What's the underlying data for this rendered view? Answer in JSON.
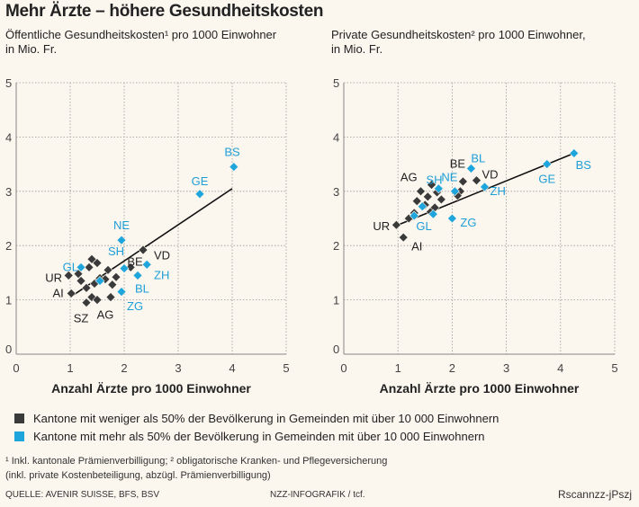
{
  "title": "Mehr Ärzte – höhere Gesundheitskosten",
  "colors": {
    "dark": "#3a3a3a",
    "blue": "#1ea5dc",
    "blue_text": "#1e9fd8"
  },
  "legend": {
    "dark_label": "Kantone mit weniger als 50% der Bevölkerung in Gemeinden mit über 10 000 Einwohnern",
    "blue_label": "Kantone mit mehr als 50% der Bevölkerung in Gemeinden mit über 10 000 Einwohnern"
  },
  "footnotes": {
    "line1": "¹ Inkl. kantonale Prämienverbilligung; ² obligatorische Kranken- und Pflegeversicherung",
    "line2": "(inkl. private Kostenbeteiligung, abzügl. Prämienverbilligung)"
  },
  "source": "QUELLE: AVENIR SUISSE, BFS, BSV",
  "credit": "NZZ-INFOGRAFIK / tcf.",
  "signature": "Rscannzz-jPszj",
  "chart_data": [
    {
      "type": "scatter",
      "title_line1": "Öffentliche Gesundheitskosten¹ pro 1000 Einwohner",
      "title_line2": "in Mio. Fr.",
      "xlabel": "Anzahl Ärzte pro 1000 Einwohner",
      "xlim": [
        0,
        5
      ],
      "ylim": [
        0,
        5
      ],
      "xticks": [
        "0",
        "1",
        "2",
        "3",
        "4",
        "5"
      ],
      "yticks": [
        "0",
        "1",
        "2",
        "3",
        "4",
        "5"
      ],
      "trendline": [
        [
          1.0,
          1.05
        ],
        [
          4.0,
          3.05
        ]
      ],
      "points": [
        {
          "x": 0.97,
          "y": 1.45,
          "group": "dark"
        },
        {
          "x": 1.02,
          "y": 1.12,
          "group": "dark"
        },
        {
          "x": 1.15,
          "y": 1.48,
          "group": "dark"
        },
        {
          "x": 1.2,
          "y": 1.35,
          "group": "dark"
        },
        {
          "x": 1.3,
          "y": 1.22,
          "group": "dark"
        },
        {
          "x": 1.35,
          "y": 1.6,
          "group": "dark"
        },
        {
          "x": 1.4,
          "y": 1.75,
          "group": "dark"
        },
        {
          "x": 1.45,
          "y": 1.3,
          "group": "dark"
        },
        {
          "x": 1.5,
          "y": 1.68,
          "group": "dark"
        },
        {
          "x": 1.55,
          "y": 1.4,
          "group": "dark"
        },
        {
          "x": 1.4,
          "y": 1.05,
          "group": "dark"
        },
        {
          "x": 1.5,
          "y": 1.0,
          "group": "dark"
        },
        {
          "x": 1.65,
          "y": 1.38,
          "group": "dark"
        },
        {
          "x": 1.7,
          "y": 1.55,
          "group": "dark"
        },
        {
          "x": 1.78,
          "y": 1.28,
          "group": "dark"
        },
        {
          "x": 1.85,
          "y": 1.42,
          "group": "dark"
        },
        {
          "x": 1.3,
          "y": 0.95,
          "group": "dark"
        },
        {
          "x": 1.75,
          "y": 1.05,
          "group": "dark"
        },
        {
          "x": 2.12,
          "y": 1.6,
          "group": "dark"
        },
        {
          "x": 2.35,
          "y": 1.92,
          "group": "dark"
        },
        {
          "x": 1.2,
          "y": 1.6,
          "group": "blue"
        },
        {
          "x": 1.55,
          "y": 1.35,
          "group": "blue"
        },
        {
          "x": 1.95,
          "y": 2.1,
          "group": "blue"
        },
        {
          "x": 1.95,
          "y": 1.15,
          "group": "blue"
        },
        {
          "x": 2.0,
          "y": 1.58,
          "group": "blue"
        },
        {
          "x": 2.25,
          "y": 1.45,
          "group": "blue"
        },
        {
          "x": 2.42,
          "y": 1.65,
          "group": "blue"
        },
        {
          "x": 3.4,
          "y": 2.95,
          "group": "blue"
        },
        {
          "x": 4.03,
          "y": 3.45,
          "group": "blue"
        }
      ],
      "labels": [
        {
          "text": "BS",
          "x": 4.0,
          "y": 3.55,
          "group": "blue",
          "anchor": "middle",
          "dy": -6
        },
        {
          "text": "GE",
          "x": 3.4,
          "y": 3.05,
          "group": "blue",
          "anchor": "middle",
          "dy": -4
        },
        {
          "text": "NE",
          "x": 1.95,
          "y": 2.2,
          "group": "blue",
          "anchor": "middle",
          "dy": -6
        },
        {
          "text": "VD",
          "x": 2.55,
          "y": 1.85,
          "group": "dark",
          "anchor": "start",
          "dy": 6
        },
        {
          "text": "GL",
          "x": 1.15,
          "y": 1.6,
          "group": "blue",
          "anchor": "end",
          "dy": 4
        },
        {
          "text": "SH",
          "x": 1.85,
          "y": 1.72,
          "group": "blue",
          "anchor": "middle",
          "dy": -6
        },
        {
          "text": "BE",
          "x": 2.2,
          "y": 1.6,
          "group": "dark",
          "anchor": "middle",
          "dy": -2
        },
        {
          "text": "ZH",
          "x": 2.55,
          "y": 1.45,
          "group": "blue",
          "anchor": "start",
          "dy": 4
        },
        {
          "text": "UR",
          "x": 0.85,
          "y": 1.4,
          "group": "dark",
          "anchor": "end",
          "dy": 4
        },
        {
          "text": "BL",
          "x": 2.2,
          "y": 1.2,
          "group": "blue",
          "anchor": "start",
          "dy": 4
        },
        {
          "text": "AI",
          "x": 0.88,
          "y": 1.12,
          "group": "dark",
          "anchor": "end",
          "dy": 4
        },
        {
          "text": "ZG",
          "x": 2.05,
          "y": 0.88,
          "group": "blue",
          "anchor": "start",
          "dy": 4
        },
        {
          "text": "AG",
          "x": 1.65,
          "y": 0.72,
          "group": "dark",
          "anchor": "middle",
          "dy": 4
        },
        {
          "text": "SZ",
          "x": 1.2,
          "y": 0.65,
          "group": "dark",
          "anchor": "middle",
          "dy": 4
        }
      ]
    },
    {
      "type": "scatter",
      "title_line1": "Private Gesundheitskosten² pro 1000 Einwohner,",
      "title_line2": "in Mio. Fr.",
      "xlabel": "Anzahl Ärzte pro 1000 Einwohner",
      "xlim": [
        0,
        5
      ],
      "ylim": [
        0,
        5
      ],
      "xticks": [
        "0",
        "1",
        "2",
        "3",
        "4",
        "5"
      ],
      "yticks": [
        "0",
        "1",
        "2",
        "3",
        "4",
        "5"
      ],
      "trendline": [
        [
          1.0,
          2.38
        ],
        [
          4.3,
          3.72
        ]
      ],
      "points": [
        {
          "x": 0.97,
          "y": 2.38,
          "group": "dark"
        },
        {
          "x": 1.1,
          "y": 2.15,
          "group": "dark"
        },
        {
          "x": 1.2,
          "y": 2.5,
          "group": "dark"
        },
        {
          "x": 1.3,
          "y": 2.6,
          "group": "dark"
        },
        {
          "x": 1.35,
          "y": 2.82,
          "group": "dark"
        },
        {
          "x": 1.42,
          "y": 3.0,
          "group": "dark"
        },
        {
          "x": 1.5,
          "y": 2.75,
          "group": "dark"
        },
        {
          "x": 1.55,
          "y": 2.9,
          "group": "dark"
        },
        {
          "x": 1.6,
          "y": 2.62,
          "group": "dark"
        },
        {
          "x": 1.68,
          "y": 2.7,
          "group": "dark"
        },
        {
          "x": 1.72,
          "y": 2.98,
          "group": "dark"
        },
        {
          "x": 1.8,
          "y": 2.85,
          "group": "dark"
        },
        {
          "x": 1.62,
          "y": 3.12,
          "group": "dark"
        },
        {
          "x": 2.15,
          "y": 3.0,
          "group": "dark"
        },
        {
          "x": 2.1,
          "y": 2.92,
          "group": "dark"
        },
        {
          "x": 2.2,
          "y": 3.18,
          "group": "dark"
        },
        {
          "x": 2.45,
          "y": 3.2,
          "group": "dark"
        },
        {
          "x": 1.3,
          "y": 2.55,
          "group": "blue"
        },
        {
          "x": 1.45,
          "y": 2.72,
          "group": "blue"
        },
        {
          "x": 1.65,
          "y": 2.58,
          "group": "blue"
        },
        {
          "x": 1.75,
          "y": 3.05,
          "group": "blue"
        },
        {
          "x": 2.0,
          "y": 2.5,
          "group": "blue"
        },
        {
          "x": 2.05,
          "y": 3.0,
          "group": "blue"
        },
        {
          "x": 2.35,
          "y": 3.42,
          "group": "blue"
        },
        {
          "x": 2.6,
          "y": 3.08,
          "group": "blue"
        },
        {
          "x": 3.75,
          "y": 3.5,
          "group": "blue"
        },
        {
          "x": 4.25,
          "y": 3.7,
          "group": "blue"
        }
      ],
      "labels": [
        {
          "text": "BS",
          "x": 4.28,
          "y": 3.48,
          "group": "blue",
          "anchor": "start",
          "dy": 4
        },
        {
          "text": "GE",
          "x": 3.75,
          "y": 3.22,
          "group": "blue",
          "anchor": "middle",
          "dy": 4
        },
        {
          "text": "BE",
          "x": 2.1,
          "y": 3.5,
          "group": "dark",
          "anchor": "middle",
          "dy": 4
        },
        {
          "text": "BL",
          "x": 2.48,
          "y": 3.6,
          "group": "blue",
          "anchor": "middle",
          "dy": 4
        },
        {
          "text": "AG",
          "x": 1.2,
          "y": 3.25,
          "group": "dark",
          "anchor": "middle",
          "dy": 4
        },
        {
          "text": "SH",
          "x": 1.67,
          "y": 3.2,
          "group": "blue",
          "anchor": "middle",
          "dy": 4
        },
        {
          "text": "NE",
          "x": 1.95,
          "y": 3.25,
          "group": "blue",
          "anchor": "middle",
          "dy": 4
        },
        {
          "text": "VD",
          "x": 2.55,
          "y": 3.3,
          "group": "dark",
          "anchor": "start",
          "dy": 4
        },
        {
          "text": "ZH",
          "x": 2.7,
          "y": 3.0,
          "group": "blue",
          "anchor": "start",
          "dy": 4
        },
        {
          "text": "GL",
          "x": 1.48,
          "y": 2.35,
          "group": "blue",
          "anchor": "middle",
          "dy": 4
        },
        {
          "text": "ZG",
          "x": 2.15,
          "y": 2.42,
          "group": "blue",
          "anchor": "start",
          "dy": 4
        },
        {
          "text": "UR",
          "x": 0.85,
          "y": 2.35,
          "group": "dark",
          "anchor": "end",
          "dy": 4
        },
        {
          "text": "AI",
          "x": 1.35,
          "y": 1.98,
          "group": "dark",
          "anchor": "middle",
          "dy": 4
        }
      ]
    }
  ]
}
